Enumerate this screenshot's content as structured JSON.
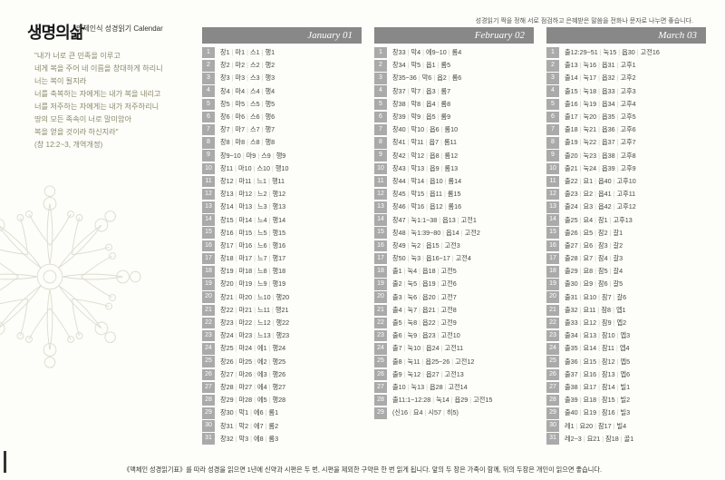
{
  "logo_main": "생명의삶",
  "logo_sub": "맥체인식 성경읽기 Calendar",
  "header_right": "성경읽기 짝을 정해 서로 점검하고 은혜받은 말씀을 전화나 문자로 나누면 좋습니다.",
  "quote": "\"내가 너로 큰 민족을 이루고\n네게 복을 주어 네 이름을 창대하게 하리니\n너는 복이 될지라\n너를 축복하는 자에게는 내가 복을 내리고\n너를 저주하는 자에게는 내가 저주하리니\n땅의 모든 족속이 너로 말미암아\n복을 얻을 것이라 하신지라\"\n(창 12:2~3, 개역개정)",
  "footer": "《맥체인 성경읽기표》를 따라 성경을 읽으면 1년에 신약과 시편은 두 번, 시편을 제외한 구약은 한 번 읽게 됩니다. 앞의 두 장은 가족이 함께, 뒤의 두장은 개인이 읽으면 좋습니다.",
  "months": [
    {
      "title": "January 01",
      "days": [
        [
          "창1",
          "마1",
          "스1",
          "행1"
        ],
        [
          "창2",
          "마2",
          "스2",
          "행2"
        ],
        [
          "창3",
          "마3",
          "스3",
          "행3"
        ],
        [
          "창4",
          "마4",
          "스4",
          "행4"
        ],
        [
          "창5",
          "마5",
          "스5",
          "행5"
        ],
        [
          "창6",
          "마6",
          "스6",
          "행6"
        ],
        [
          "창7",
          "마7",
          "스7",
          "행7"
        ],
        [
          "창8",
          "마8",
          "스8",
          "행8"
        ],
        [
          "창9~10",
          "마9",
          "스9",
          "행9"
        ],
        [
          "창11",
          "마10",
          "스10",
          "행10"
        ],
        [
          "창12",
          "마11",
          "느1",
          "행11"
        ],
        [
          "창13",
          "마12",
          "느2",
          "행12"
        ],
        [
          "창14",
          "마13",
          "느3",
          "행13"
        ],
        [
          "창15",
          "마14",
          "느4",
          "행14"
        ],
        [
          "창16",
          "마15",
          "느5",
          "행15"
        ],
        [
          "창17",
          "마16",
          "느6",
          "행16"
        ],
        [
          "창18",
          "마17",
          "느7",
          "행17"
        ],
        [
          "창19",
          "마18",
          "느8",
          "행18"
        ],
        [
          "창20",
          "마19",
          "느9",
          "행19"
        ],
        [
          "창21",
          "마20",
          "느10",
          "행20"
        ],
        [
          "창22",
          "마21",
          "느11",
          "행21"
        ],
        [
          "창23",
          "마22",
          "느12",
          "행22"
        ],
        [
          "창24",
          "마23",
          "느13",
          "행23"
        ],
        [
          "창25",
          "마24",
          "에1",
          "행24"
        ],
        [
          "창26",
          "마25",
          "에2",
          "행25"
        ],
        [
          "창27",
          "마26",
          "에3",
          "행26"
        ],
        [
          "창28",
          "마27",
          "에4",
          "행27"
        ],
        [
          "창29",
          "마28",
          "에5",
          "행28"
        ],
        [
          "창30",
          "막1",
          "에6",
          "롬1"
        ],
        [
          "창31",
          "막2",
          "에7",
          "롬2"
        ],
        [
          "창32",
          "막3",
          "에8",
          "롬3"
        ]
      ]
    },
    {
      "title": "February 02",
      "days": [
        [
          "창33",
          "막4",
          "에9~10",
          "롬4"
        ],
        [
          "창34",
          "막5",
          "욥1",
          "롬5"
        ],
        [
          "창35~36",
          "막6",
          "욥2",
          "롬6"
        ],
        [
          "창37",
          "막7",
          "욥3",
          "롬7"
        ],
        [
          "창38",
          "막8",
          "욥4",
          "롬8"
        ],
        [
          "창39",
          "막9",
          "욥5",
          "롬9"
        ],
        [
          "창40",
          "막10",
          "욥6",
          "롬10"
        ],
        [
          "창41",
          "막11",
          "욥7",
          "롬11"
        ],
        [
          "창42",
          "막12",
          "욥8",
          "롬12"
        ],
        [
          "창43",
          "막13",
          "욥9",
          "롬13"
        ],
        [
          "창44",
          "막14",
          "욥10",
          "롬14"
        ],
        [
          "창45",
          "막15",
          "욥11",
          "롬15"
        ],
        [
          "창46",
          "막16",
          "욥12",
          "롬16"
        ],
        [
          "창47",
          "눅1:1~38",
          "욥13",
          "고전1"
        ],
        [
          "창48",
          "눅1:39~80",
          "욥14",
          "고전2"
        ],
        [
          "창49",
          "눅2",
          "욥15",
          "고전3"
        ],
        [
          "창50",
          "눅3",
          "욥16~17",
          "고전4"
        ],
        [
          "출1",
          "눅4",
          "욥18",
          "고전5"
        ],
        [
          "출2",
          "눅5",
          "욥19",
          "고전6"
        ],
        [
          "출3",
          "눅6",
          "욥20",
          "고전7"
        ],
        [
          "출4",
          "눅7",
          "욥21",
          "고전8"
        ],
        [
          "출5",
          "눅8",
          "욥22",
          "고전9"
        ],
        [
          "출6",
          "눅9",
          "욥23",
          "고전10"
        ],
        [
          "출7",
          "눅10",
          "욥24",
          "고전11"
        ],
        [
          "출8",
          "눅11",
          "욥25~26",
          "고전12"
        ],
        [
          "출9",
          "눅12",
          "욥27",
          "고전13"
        ],
        [
          "출10",
          "눅13",
          "욥28",
          "고전14"
        ],
        [
          "출11:1~12:28",
          "눅14",
          "욥29",
          "고전15"
        ],
        [
          "(신16",
          "요4",
          "시57",
          "히5)"
        ]
      ]
    },
    {
      "title": "March 03",
      "days": [
        [
          "출12:29~51",
          "눅15",
          "욥30",
          "고전16"
        ],
        [
          "출13",
          "눅16",
          "욥31",
          "고후1"
        ],
        [
          "출14",
          "눅17",
          "욥32",
          "고후2"
        ],
        [
          "출15",
          "눅18",
          "욥33",
          "고후3"
        ],
        [
          "출16",
          "눅19",
          "욥34",
          "고후4"
        ],
        [
          "출17",
          "눅20",
          "욥35",
          "고후5"
        ],
        [
          "출18",
          "눅21",
          "욥36",
          "고후6"
        ],
        [
          "출19",
          "눅22",
          "욥37",
          "고후7"
        ],
        [
          "출20",
          "눅23",
          "욥38",
          "고후8"
        ],
        [
          "출21",
          "눅24",
          "욥39",
          "고후9"
        ],
        [
          "출22",
          "요1",
          "욥40",
          "고후10"
        ],
        [
          "출23",
          "요2",
          "욥41",
          "고후11"
        ],
        [
          "출24",
          "요3",
          "욥42",
          "고후12"
        ],
        [
          "출25",
          "요4",
          "잠1",
          "고후13"
        ],
        [
          "출26",
          "요5",
          "잠2",
          "갈1"
        ],
        [
          "출27",
          "요6",
          "잠3",
          "갈2"
        ],
        [
          "출28",
          "요7",
          "잠4",
          "갈3"
        ],
        [
          "출29",
          "요8",
          "잠5",
          "갈4"
        ],
        [
          "출30",
          "요9",
          "잠6",
          "갈5"
        ],
        [
          "출31",
          "요10",
          "잠7",
          "갈6"
        ],
        [
          "출32",
          "요11",
          "잠8",
          "엡1"
        ],
        [
          "출33",
          "요12",
          "잠9",
          "엡2"
        ],
        [
          "출34",
          "요13",
          "잠10",
          "엡3"
        ],
        [
          "출35",
          "요14",
          "잠11",
          "엡4"
        ],
        [
          "출36",
          "요15",
          "잠12",
          "엡5"
        ],
        [
          "출37",
          "요16",
          "잠13",
          "엡6"
        ],
        [
          "출38",
          "요17",
          "잠14",
          "빌1"
        ],
        [
          "출39",
          "요18",
          "잠15",
          "빌2"
        ],
        [
          "출40",
          "요19",
          "잠16",
          "빌3"
        ],
        [
          "레1",
          "요20",
          "잠17",
          "빌4"
        ],
        [
          "레2~3",
          "요21",
          "잠18",
          "골1"
        ]
      ]
    }
  ]
}
